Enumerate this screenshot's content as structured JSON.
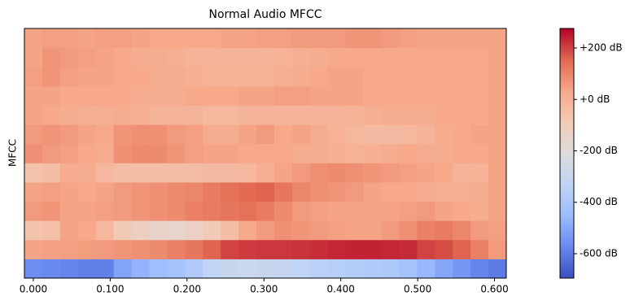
{
  "chart_data": {
    "type": "heatmap",
    "title": "Normal Audio MFCC",
    "y_label": "MFCC",
    "colormap": "coolwarm",
    "x": [
      0,
      0.0232,
      0.0464,
      0.0697,
      0.0929,
      0.1161,
      0.1393,
      0.1625,
      0.1858,
      0.209,
      0.2322,
      0.2554,
      0.2786,
      0.3019,
      0.3251,
      0.3483,
      0.3715,
      0.3947,
      0.418,
      0.4412,
      0.4644,
      0.4876,
      0.5108,
      0.5341,
      0.5573,
      0.5805,
      0.6037
    ],
    "xlim": [
      -0.0116,
      0.6153
    ],
    "xticks": [
      {
        "value": 0,
        "label": "0.000"
      },
      {
        "value": 0.1,
        "label": "0.100"
      },
      {
        "value": 0.2,
        "label": "0.200"
      },
      {
        "value": 0.3,
        "label": "0.300"
      },
      {
        "value": 0.4,
        "label": "0.400"
      },
      {
        "value": 0.5,
        "label": "0.500"
      },
      {
        "value": 0.6,
        "label": "0.600"
      }
    ],
    "clim": [
      -695,
      276
    ],
    "cticks": [
      {
        "value": 200,
        "label": "+200 dB"
      },
      {
        "value": 0,
        "label": "+0 dB"
      },
      {
        "value": -200,
        "label": "-200 dB"
      },
      {
        "value": -400,
        "label": "-400 dB"
      },
      {
        "value": -600,
        "label": "-600 dB"
      }
    ],
    "z": [
      [
        -560,
        -570,
        -580,
        -590,
        -590,
        -510,
        -470,
        -440,
        -420,
        -380,
        -330,
        -300,
        -290,
        -300,
        -310,
        -330,
        -350,
        -360,
        -370,
        -380,
        -390,
        -420,
        -460,
        -500,
        -540,
        -580,
        -600
      ],
      [
        40,
        45,
        50,
        55,
        60,
        70,
        80,
        90,
        110,
        130,
        160,
        200,
        210,
        215,
        215,
        220,
        225,
        235,
        240,
        240,
        235,
        230,
        200,
        190,
        160,
        110,
        60
      ],
      [
        -60,
        -50,
        40,
        30,
        -20,
        -80,
        -120,
        -140,
        -150,
        -130,
        -90,
        -40,
        30,
        60,
        80,
        70,
        60,
        50,
        40,
        40,
        60,
        80,
        110,
        120,
        100,
        60,
        50
      ],
      [
        60,
        70,
        40,
        40,
        50,
        60,
        70,
        80,
        90,
        110,
        120,
        130,
        140,
        120,
        90,
        60,
        50,
        40,
        40,
        40,
        40,
        50,
        60,
        40,
        30,
        20,
        40
      ],
      [
        40,
        50,
        40,
        30,
        40,
        60,
        70,
        80,
        90,
        100,
        120,
        140,
        150,
        160,
        130,
        100,
        80,
        70,
        60,
        40,
        30,
        30,
        20,
        10,
        10,
        20,
        40
      ],
      [
        -60,
        -40,
        20,
        20,
        -20,
        -40,
        -40,
        -40,
        -40,
        -40,
        -30,
        -30,
        -20,
        10,
        40,
        60,
        80,
        90,
        80,
        70,
        60,
        50,
        40,
        30,
        -10,
        0,
        40
      ],
      [
        80,
        60,
        50,
        30,
        20,
        80,
        90,
        90,
        70,
        50,
        40,
        40,
        30,
        30,
        30,
        20,
        20,
        10,
        0,
        10,
        20,
        30,
        20,
        20,
        30,
        30,
        40
      ],
      [
        60,
        70,
        60,
        40,
        30,
        70,
        80,
        80,
        60,
        50,
        20,
        20,
        40,
        60,
        30,
        40,
        20,
        0,
        -20,
        -30,
        -30,
        -20,
        -10,
        20,
        30,
        40,
        40
      ],
      [
        40,
        30,
        20,
        10,
        10,
        20,
        10,
        -10,
        -10,
        -10,
        -20,
        -20,
        -10,
        -10,
        -10,
        -10,
        -10,
        -10,
        0,
        10,
        20,
        20,
        20,
        30,
        30,
        30,
        40
      ],
      [
        40,
        40,
        30,
        30,
        30,
        30,
        20,
        20,
        20,
        30,
        30,
        30,
        40,
        40,
        50,
        50,
        40,
        40,
        40,
        30,
        30,
        30,
        30,
        30,
        30,
        30,
        40
      ],
      [
        50,
        70,
        50,
        40,
        40,
        30,
        30,
        20,
        20,
        10,
        0,
        0,
        0,
        0,
        10,
        20,
        30,
        40,
        40,
        30,
        30,
        30,
        30,
        30,
        30,
        30,
        40
      ],
      [
        40,
        70,
        60,
        50,
        40,
        30,
        20,
        20,
        10,
        0,
        -10,
        -10,
        -10,
        -10,
        0,
        10,
        20,
        30,
        30,
        30,
        30,
        30,
        30,
        30,
        30,
        30,
        40
      ],
      [
        40,
        50,
        50,
        40,
        50,
        50,
        40,
        30,
        30,
        30,
        30,
        40,
        40,
        50,
        50,
        60,
        60,
        60,
        70,
        70,
        60,
        50,
        40,
        40,
        40,
        40,
        40
      ]
    ]
  }
}
